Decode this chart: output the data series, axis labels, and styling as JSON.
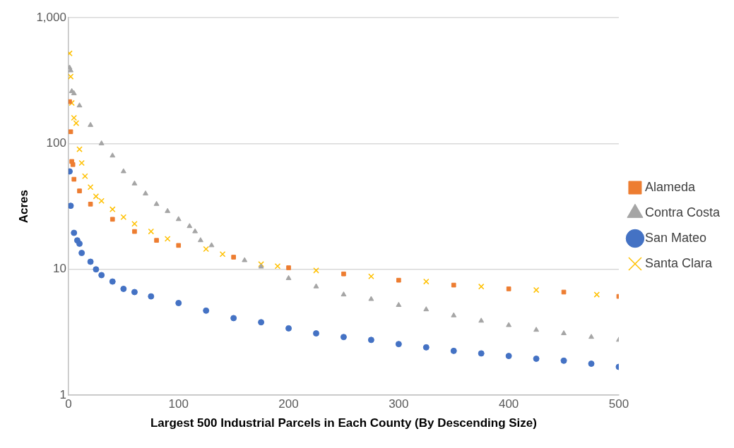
{
  "chart_data": {
    "type": "scatter",
    "xlabel": "Largest 500 Industrial Parcels in Each County (By Descending Size)",
    "ylabel": "Acres",
    "log": "y",
    "grid": "y",
    "legend": "right",
    "xlim": [
      0,
      500
    ],
    "xticks": [
      0,
      100,
      200,
      300,
      400,
      500
    ],
    "ylim": [
      1,
      1000
    ],
    "yticks": [
      1,
      10,
      100,
      {
        "value": 1000,
        "label": "1,000"
      }
    ],
    "series": [
      {
        "name": "Alameda",
        "color": "#ed7d31",
        "marker": "square",
        "x": [
          1,
          2,
          3,
          4,
          5,
          10,
          20,
          40,
          60,
          80,
          100,
          150,
          200,
          250,
          300,
          350,
          400,
          450,
          500
        ],
        "values": [
          215,
          124,
          72,
          68,
          52,
          42,
          33,
          25,
          20,
          17,
          15.5,
          12.5,
          10.3,
          9.2,
          8.2,
          7.5,
          7,
          6.6,
          6.1
        ]
      },
      {
        "name": "Contra Costa",
        "color": "#a5a5a5",
        "marker": "triangle",
        "x": [
          1,
          2,
          3,
          5,
          10,
          20,
          30,
          40,
          50,
          60,
          70,
          80,
          90,
          100,
          110,
          115,
          120,
          130,
          160,
          175,
          200,
          225,
          250,
          275,
          300,
          325,
          350,
          375,
          400,
          425,
          450,
          475,
          500
        ],
        "values": [
          400,
          380,
          260,
          250,
          200,
          140,
          100,
          80,
          60,
          48,
          40,
          33,
          29,
          25,
          22,
          20,
          17,
          15.5,
          11.8,
          10.5,
          8.5,
          7.3,
          6.3,
          5.8,
          5.2,
          4.8,
          4.3,
          3.9,
          3.6,
          3.3,
          3.1,
          2.9,
          2.75
        ]
      },
      {
        "name": "San Mateo",
        "color": "#4472c4",
        "marker": "circle",
        "x": [
          1,
          2,
          5,
          8,
          10,
          12,
          20,
          25,
          30,
          40,
          50,
          60,
          75,
          100,
          125,
          150,
          175,
          200,
          225,
          250,
          275,
          300,
          325,
          350,
          375,
          400,
          425,
          450,
          475,
          500
        ],
        "values": [
          60,
          32,
          19.5,
          17,
          16,
          13.5,
          11.5,
          10,
          9,
          8,
          7,
          6.6,
          6.1,
          5.4,
          4.7,
          4.1,
          3.8,
          3.4,
          3.1,
          2.9,
          2.75,
          2.55,
          2.4,
          2.25,
          2.15,
          2.05,
          1.95,
          1.88,
          1.78,
          1.68
        ]
      },
      {
        "name": "Santa Clara",
        "color": "#ffc000",
        "marker": "cross",
        "x": [
          1,
          2,
          3,
          5,
          7,
          10,
          12,
          15,
          20,
          25,
          30,
          40,
          50,
          60,
          75,
          90,
          125,
          140,
          175,
          190,
          225,
          275,
          325,
          375,
          425,
          480
        ],
        "values": [
          520,
          340,
          210,
          160,
          145,
          90,
          70,
          55,
          45,
          38,
          35,
          30,
          26,
          23,
          20,
          17.5,
          14.5,
          13.2,
          11,
          10.6,
          9.8,
          8.8,
          8,
          7.3,
          6.85,
          6.3
        ]
      }
    ]
  }
}
